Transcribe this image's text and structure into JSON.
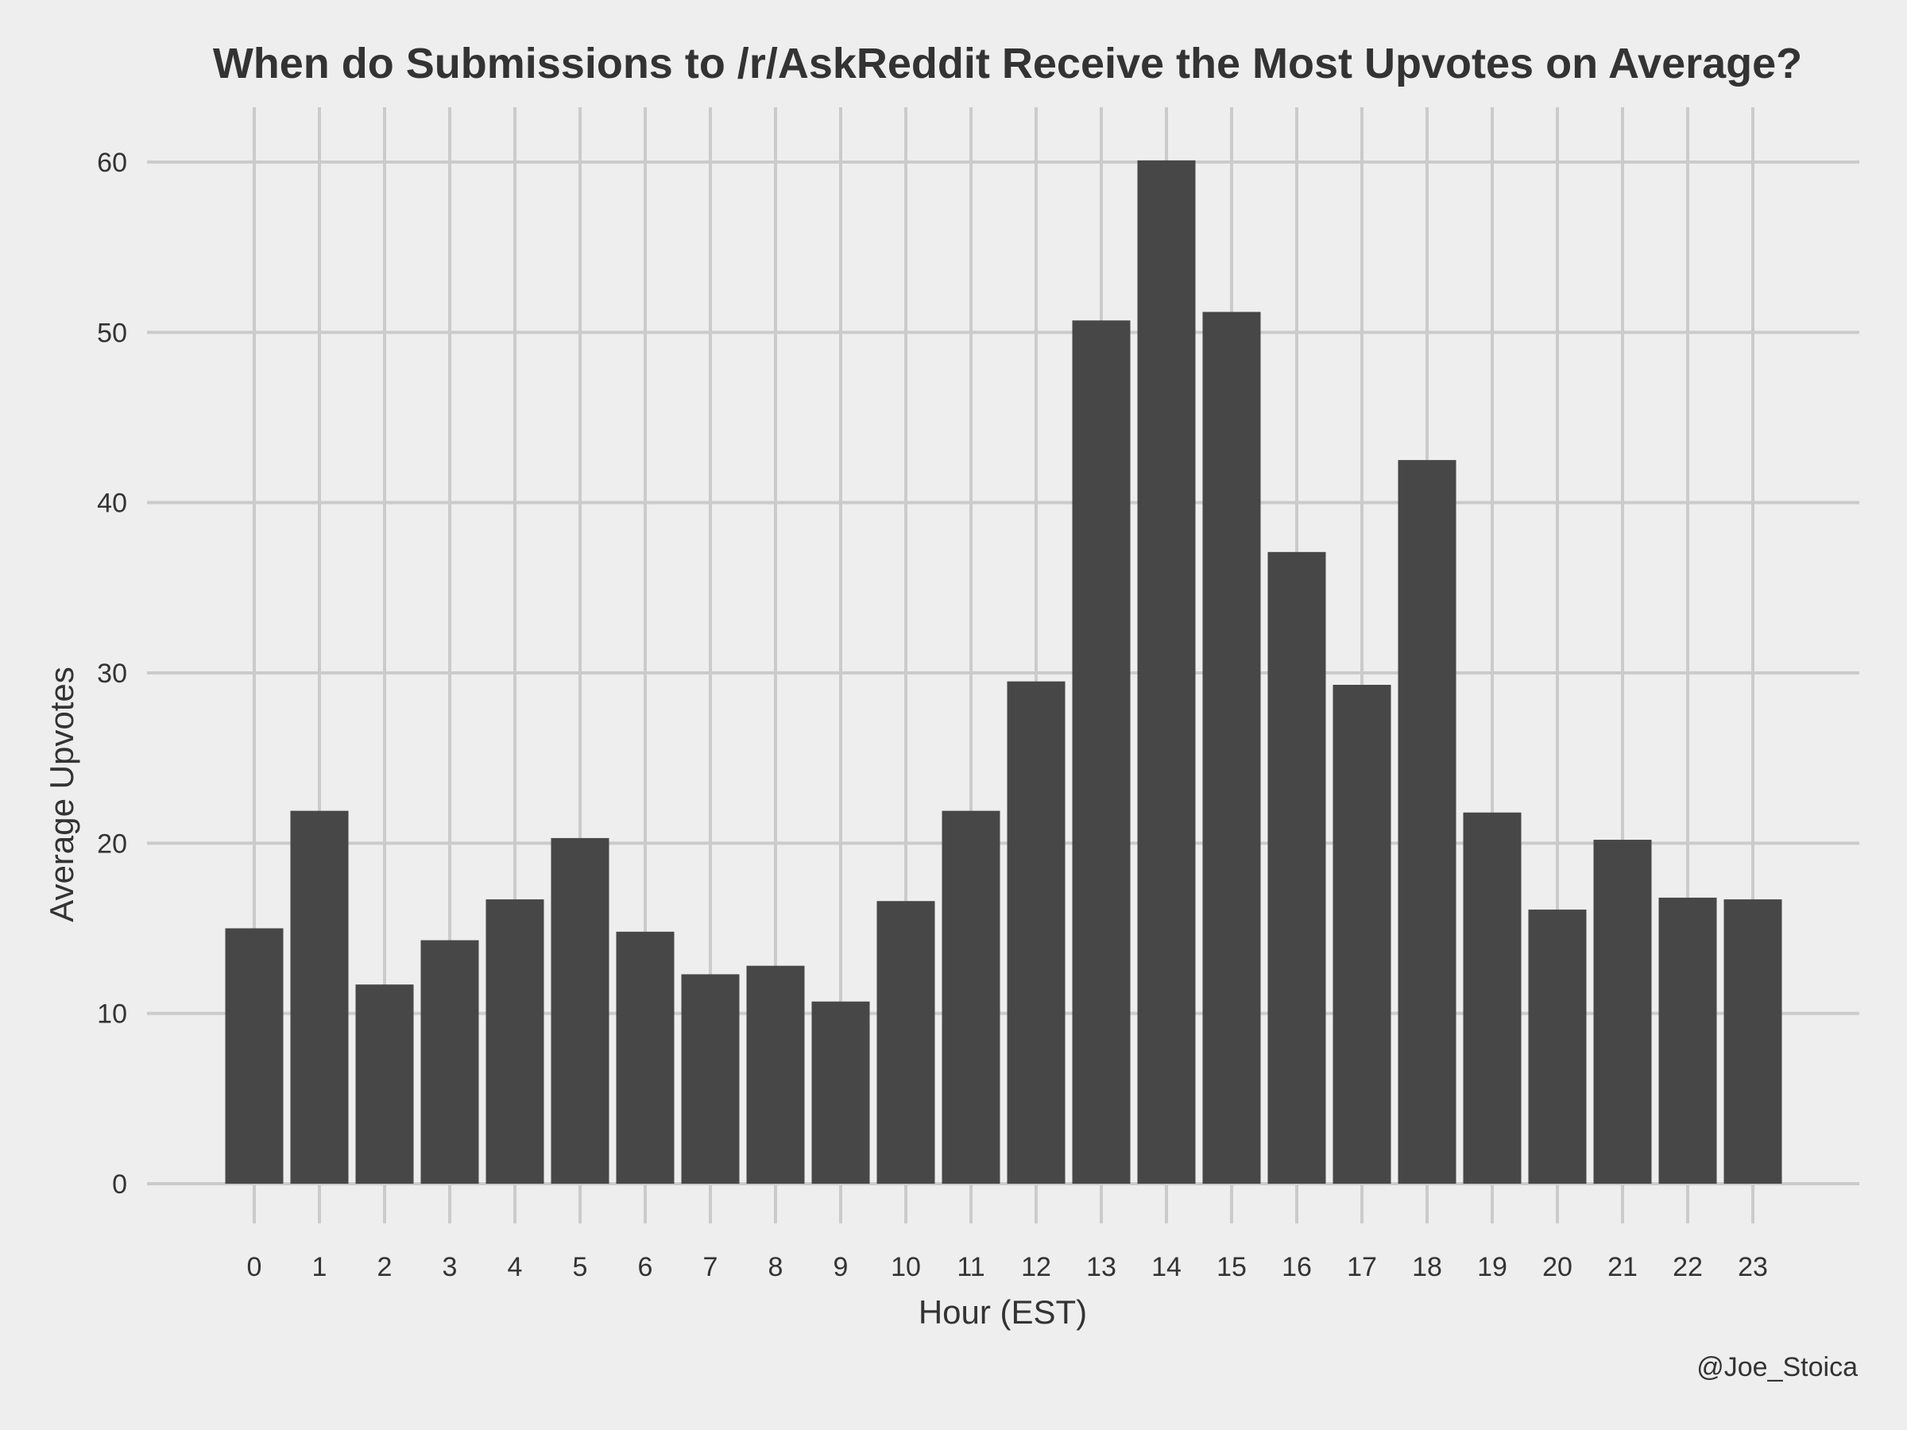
{
  "chart_data": {
    "type": "bar",
    "title": "When do Submissions to /r/AskReddit Receive the Most Upvotes on Average?",
    "xlabel": "Hour (EST)",
    "ylabel": "Average Upvotes",
    "caption": "@Joe_Stoica",
    "categories": [
      "0",
      "1",
      "2",
      "3",
      "4",
      "5",
      "6",
      "7",
      "8",
      "9",
      "10",
      "11",
      "12",
      "13",
      "14",
      "15",
      "16",
      "17",
      "18",
      "19",
      "20",
      "21",
      "22",
      "23"
    ],
    "values": [
      15.0,
      21.9,
      11.7,
      14.3,
      16.7,
      20.3,
      14.8,
      12.3,
      12.8,
      10.7,
      16.6,
      21.9,
      29.5,
      50.7,
      60.1,
      51.2,
      37.1,
      29.3,
      42.5,
      21.8,
      16.1,
      20.2,
      16.8,
      16.7
    ],
    "yticks": [
      0,
      10,
      20,
      30,
      40,
      50,
      60
    ],
    "ylim": [
      0,
      63
    ],
    "grid": true,
    "bar_color": "#474747",
    "background": "#eeeeee",
    "grid_color": "#cbcbcb"
  }
}
